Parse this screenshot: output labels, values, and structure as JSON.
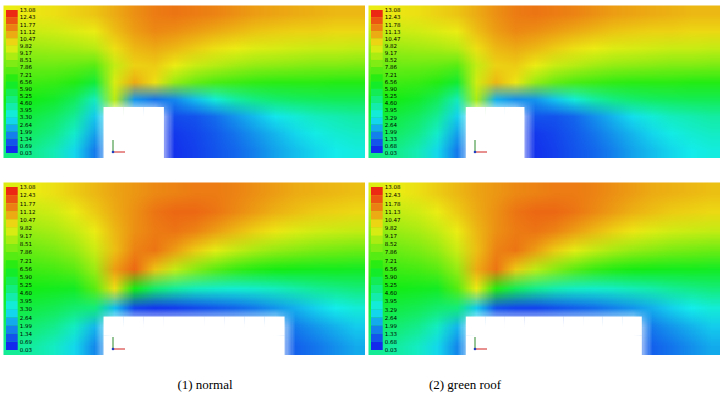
{
  "chart_data": [
    {
      "type": "contour",
      "tick_labels": false,
      "colorbar_range": [
        0.03,
        13.08
      ],
      "colorbar_ticks": [
        13.08,
        12.43,
        11.77,
        11.12,
        10.47,
        9.82,
        9.17,
        8.51,
        7.86,
        7.21,
        6.56,
        {
          "value": 5.9,
          "label": "5.90"
        },
        5.25,
        {
          "value": 4.6,
          "label": "4.60"
        },
        3.95,
        {
          "value": 3.3,
          "label": "3.30"
        },
        2.64,
        1.99,
        1.34,
        0.69,
        0.03
      ],
      "cells": [
        [
          9.8,
          9.9,
          10.0,
          10.2,
          10.4,
          10.8,
          11.2,
          11.5,
          11.6,
          11.5,
          11.4,
          11.2,
          11.0,
          10.9,
          10.8,
          10.7,
          10.6,
          10.6
        ],
        [
          9.2,
          9.3,
          9.4,
          9.6,
          9.8,
          10.5,
          11.0,
          11.3,
          11.2,
          11.0,
          10.8,
          10.6,
          10.4,
          10.3,
          10.2,
          10.2,
          10.1,
          10.1
        ],
        [
          8.5,
          8.6,
          8.7,
          8.8,
          9.0,
          10.0,
          10.6,
          10.8,
          10.6,
          10.3,
          10.0,
          9.8,
          9.6,
          9.5,
          9.4,
          9.3,
          9.3,
          9.2
        ],
        [
          7.9,
          7.9,
          7.9,
          7.8,
          7.6,
          9.2,
          10.2,
          10.3,
          9.8,
          9.3,
          9.0,
          8.7,
          8.5,
          8.4,
          8.3,
          8.2,
          8.2,
          8.1
        ],
        [
          7.2,
          7.2,
          7.1,
          6.8,
          6.0,
          9.5,
          10.8,
          10.0,
          8.5,
          7.8,
          7.4,
          7.2,
          7.0,
          6.9,
          6.9,
          6.9,
          6.8,
          6.8
        ],
        [
          6.6,
          6.5,
          6.2,
          5.5,
          4.0,
          9.0,
          2.0,
          1.5,
          1.8,
          2.6,
          3.6,
          4.4,
          4.9,
          5.2,
          5.4,
          5.5,
          5.6,
          5.6
        ],
        [
          6.0,
          5.8,
          5.4,
          4.6,
          2.8,
          null,
          null,
          null,
          0.9,
          1.0,
          1.4,
          2.0,
          2.6,
          3.2,
          3.6,
          4.0,
          4.2,
          4.4
        ],
        [
          5.5,
          5.3,
          4.8,
          3.8,
          2.2,
          null,
          null,
          null,
          0.6,
          0.8,
          1.1,
          1.5,
          2.0,
          2.5,
          3.0,
          3.4,
          3.7,
          3.9
        ],
        [
          4.9,
          4.7,
          4.1,
          3.0,
          1.6,
          null,
          null,
          null,
          0.5,
          0.7,
          1.0,
          1.3,
          1.7,
          2.2,
          2.6,
          3.0,
          3.3,
          3.5
        ]
      ]
    },
    {
      "type": "contour",
      "tick_labels": false,
      "colorbar_range": [
        0.03,
        13.08
      ],
      "colorbar_ticks": [
        13.08,
        12.43,
        11.78,
        11.13,
        10.47,
        9.82,
        9.17,
        8.52,
        7.86,
        7.21,
        6.56,
        {
          "value": 5.9,
          "label": "5.90"
        },
        5.25,
        {
          "value": 4.6,
          "label": "4.60"
        },
        3.95,
        3.29,
        2.64,
        1.99,
        1.33,
        0.68,
        0.03
      ],
      "cells": [
        [
          9.8,
          9.9,
          10.0,
          10.2,
          10.4,
          10.8,
          11.2,
          11.5,
          11.6,
          11.5,
          11.4,
          11.2,
          11.0,
          10.9,
          10.8,
          10.7,
          10.6,
          10.6
        ],
        [
          9.2,
          9.3,
          9.4,
          9.6,
          9.8,
          10.5,
          11.0,
          11.3,
          11.2,
          11.0,
          10.8,
          10.6,
          10.4,
          10.3,
          10.2,
          10.2,
          10.1,
          10.1
        ],
        [
          8.5,
          8.6,
          8.7,
          8.8,
          9.0,
          10.0,
          10.6,
          10.8,
          10.6,
          10.3,
          10.0,
          9.8,
          9.6,
          9.5,
          9.4,
          9.3,
          9.3,
          9.2
        ],
        [
          7.9,
          7.9,
          7.9,
          7.8,
          7.6,
          9.2,
          10.2,
          10.3,
          9.8,
          9.3,
          9.0,
          8.7,
          8.5,
          8.4,
          8.3,
          8.2,
          8.2,
          8.1
        ],
        [
          7.2,
          7.2,
          7.1,
          6.8,
          6.1,
          9.4,
          10.6,
          9.9,
          8.5,
          7.8,
          7.4,
          7.2,
          7.0,
          6.9,
          6.9,
          6.9,
          6.8,
          6.8
        ],
        [
          6.6,
          6.5,
          6.2,
          5.5,
          4.1,
          8.8,
          2.4,
          1.9,
          2.0,
          2.7,
          3.6,
          4.4,
          4.9,
          5.2,
          5.4,
          5.5,
          5.6,
          5.6
        ],
        [
          6.0,
          5.8,
          5.4,
          4.6,
          2.9,
          null,
          null,
          null,
          1.0,
          1.0,
          1.3,
          1.9,
          2.5,
          3.1,
          3.6,
          4.0,
          4.2,
          4.4
        ],
        [
          5.5,
          5.3,
          4.8,
          3.8,
          2.2,
          null,
          null,
          null,
          0.6,
          0.8,
          1.1,
          1.5,
          2.0,
          2.5,
          3.0,
          3.4,
          3.7,
          3.9
        ],
        [
          4.9,
          4.7,
          4.1,
          3.0,
          1.6,
          null,
          null,
          null,
          0.5,
          0.7,
          1.0,
          1.3,
          1.7,
          2.2,
          2.6,
          3.0,
          3.3,
          3.5
        ]
      ]
    },
    {
      "type": "contour",
      "tick_labels": false,
      "colorbar_range": [
        0.03,
        13.08
      ],
      "colorbar_ticks": [
        13.08,
        12.43,
        11.77,
        11.12,
        10.47,
        9.82,
        9.17,
        8.51,
        7.86,
        7.21,
        6.56,
        {
          "value": 5.9,
          "label": "5.90"
        },
        5.25,
        {
          "value": 4.6,
          "label": "4.60"
        },
        3.95,
        {
          "value": 3.3,
          "label": "3.30"
        },
        2.64,
        1.99,
        1.34,
        0.69,
        0.03
      ],
      "cells": [
        [
          9.6,
          9.8,
          10.0,
          10.3,
          10.6,
          10.9,
          11.1,
          11.3,
          11.4,
          11.5,
          11.5,
          11.4,
          11.2,
          11.0,
          10.8,
          10.7,
          10.6,
          10.5
        ],
        [
          9.0,
          9.2,
          9.4,
          9.8,
          10.3,
          10.8,
          11.2,
          11.6,
          11.8,
          11.8,
          11.6,
          11.3,
          11.0,
          10.7,
          10.5,
          10.3,
          10.2,
          10.1
        ],
        [
          8.4,
          8.6,
          8.8,
          9.2,
          9.8,
          10.6,
          11.2,
          11.5,
          11.6,
          11.4,
          11.0,
          10.6,
          10.2,
          9.9,
          9.6,
          9.4,
          9.3,
          9.2
        ],
        [
          7.8,
          7.9,
          8.1,
          8.5,
          9.3,
          10.5,
          11.4,
          11.6,
          11.0,
          10.3,
          9.7,
          9.2,
          8.8,
          8.5,
          8.3,
          8.1,
          8.0,
          7.9
        ],
        [
          7.1,
          7.2,
          7.3,
          7.6,
          8.6,
          11.0,
          11.8,
          10.4,
          9.2,
          8.3,
          7.6,
          7.1,
          6.8,
          6.6,
          6.5,
          6.4,
          6.4,
          6.3
        ],
        [
          6.5,
          6.5,
          6.4,
          6.3,
          7.6,
          10.0,
          6.5,
          5.2,
          4.5,
          4.0,
          3.8,
          3.7,
          3.8,
          4.0,
          4.3,
          4.6,
          4.8,
          5.0
        ],
        [
          5.9,
          5.8,
          5.6,
          5.2,
          5.0,
          2.6,
          0.8,
          0.6,
          0.7,
          0.9,
          1.1,
          1.3,
          1.6,
          2.0,
          2.4,
          2.9,
          3.3,
          3.6
        ],
        [
          5.3,
          5.1,
          4.7,
          3.9,
          2.5,
          null,
          null,
          null,
          null,
          null,
          null,
          null,
          null,
          null,
          1.6,
          2.0,
          2.4,
          2.8
        ],
        [
          4.6,
          4.4,
          3.9,
          3.0,
          1.8,
          null,
          null,
          null,
          null,
          null,
          null,
          null,
          null,
          null,
          1.2,
          1.5,
          1.9,
          2.3
        ]
      ]
    },
    {
      "type": "contour",
      "tick_labels": false,
      "colorbar_range": [
        0.03,
        13.08
      ],
      "colorbar_ticks": [
        13.08,
        12.43,
        11.78,
        11.13,
        10.47,
        9.82,
        9.17,
        8.52,
        7.86,
        7.21,
        6.56,
        {
          "value": 5.9,
          "label": "5.90"
        },
        5.25,
        {
          "value": 4.6,
          "label": "4.60"
        },
        3.95,
        3.29,
        2.64,
        1.99,
        1.33,
        0.68,
        0.03
      ],
      "cells": [
        [
          9.6,
          9.8,
          10.0,
          10.3,
          10.6,
          10.9,
          11.1,
          11.3,
          11.4,
          11.5,
          11.5,
          11.4,
          11.2,
          11.0,
          10.8,
          10.7,
          10.6,
          10.5
        ],
        [
          9.0,
          9.2,
          9.4,
          9.8,
          10.3,
          10.8,
          11.2,
          11.6,
          11.8,
          11.8,
          11.6,
          11.3,
          11.0,
          10.7,
          10.5,
          10.3,
          10.2,
          10.1
        ],
        [
          8.4,
          8.6,
          8.8,
          9.2,
          9.8,
          10.6,
          11.2,
          11.5,
          11.6,
          11.4,
          11.0,
          10.6,
          10.2,
          9.9,
          9.6,
          9.4,
          9.3,
          9.2
        ],
        [
          7.8,
          7.9,
          8.1,
          8.5,
          9.3,
          10.5,
          11.4,
          11.6,
          11.0,
          10.3,
          9.7,
          9.2,
          8.8,
          8.5,
          8.3,
          8.1,
          8.0,
          7.9
        ],
        [
          7.1,
          7.2,
          7.3,
          7.6,
          8.5,
          10.8,
          11.6,
          10.3,
          9.1,
          8.3,
          7.6,
          7.1,
          6.8,
          6.6,
          6.5,
          6.4,
          6.4,
          6.3
        ],
        [
          6.5,
          6.5,
          6.4,
          6.3,
          7.5,
          9.8,
          6.8,
          5.5,
          4.7,
          4.2,
          3.9,
          3.8,
          3.9,
          4.1,
          4.3,
          4.6,
          4.8,
          5.0
        ],
        [
          5.9,
          5.8,
          5.6,
          5.2,
          5.0,
          2.8,
          1.0,
          0.8,
          0.8,
          1.0,
          1.2,
          1.4,
          1.7,
          2.0,
          2.4,
          2.9,
          3.3,
          3.6
        ],
        [
          5.3,
          5.1,
          4.7,
          3.9,
          2.5,
          null,
          null,
          null,
          null,
          null,
          null,
          null,
          null,
          null,
          1.6,
          2.0,
          2.4,
          2.8
        ],
        [
          4.6,
          4.4,
          3.9,
          3.0,
          1.8,
          null,
          null,
          null,
          null,
          null,
          null,
          null,
          null,
          null,
          1.2,
          1.5,
          1.9,
          2.3
        ]
      ]
    }
  ],
  "captions": [
    "(1) normal",
    "(2) green roof"
  ]
}
